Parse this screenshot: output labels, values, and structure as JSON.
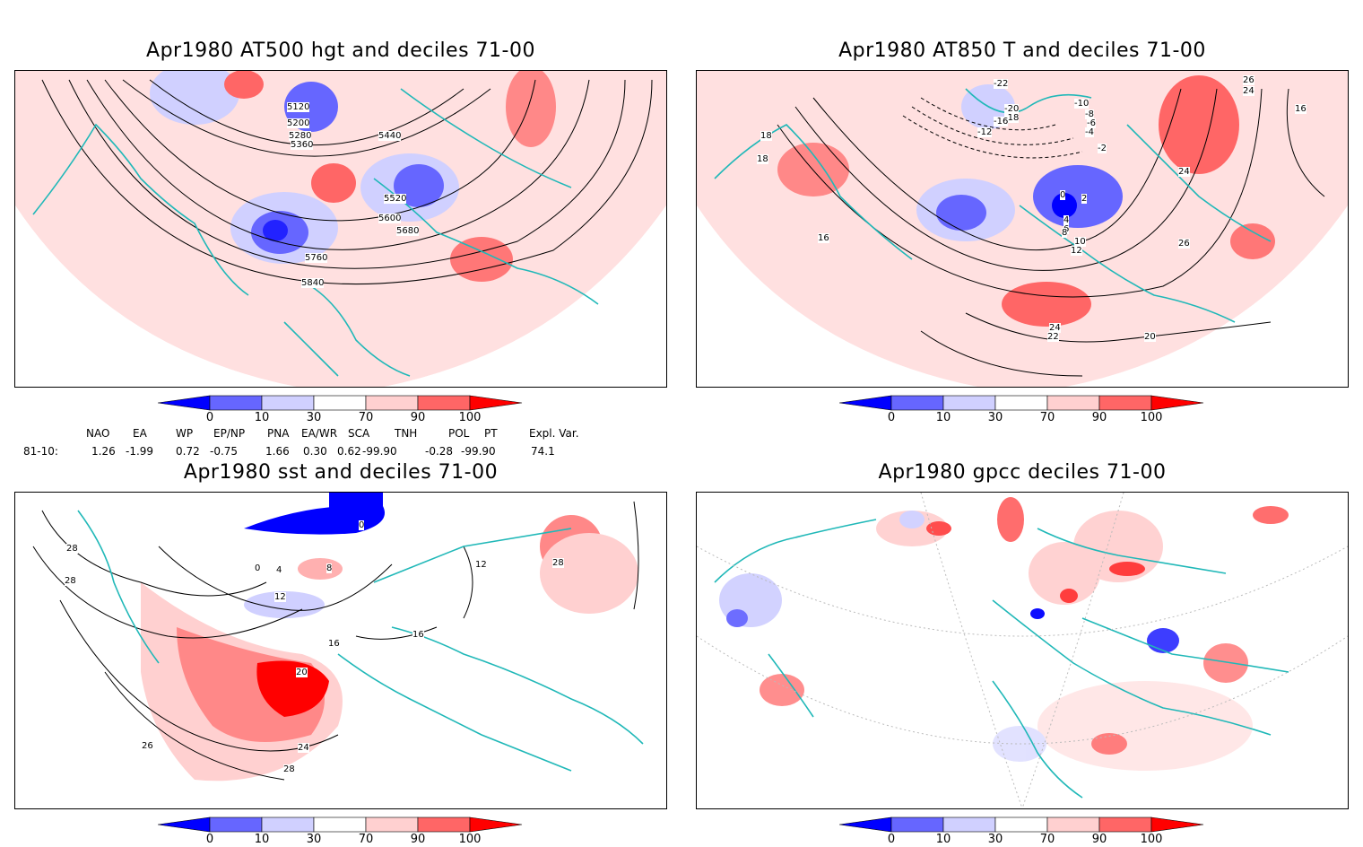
{
  "panels": [
    {
      "title": "Apr1980 AT500 hgt and deciles 71-00",
      "contour_labels": [
        "5120",
        "5200",
        "5280",
        "5360",
        "5440",
        "5520",
        "5600",
        "5680",
        "5760",
        "5840"
      ]
    },
    {
      "title": "Apr1980 AT850 T and deciles 71-00",
      "contour_labels": [
        "-22",
        "-20",
        "-18",
        "-16",
        "-12",
        "-10",
        "-8",
        "-6",
        "-4",
        "-2",
        "0",
        "2",
        "4",
        "6",
        "8",
        "10",
        "12",
        "16",
        "18",
        "18",
        "20",
        "22",
        "24",
        "24",
        "24",
        "26",
        "26",
        "16"
      ]
    },
    {
      "title": "Apr1980 sst and deciles 71-00",
      "contour_labels": [
        "28",
        "28",
        "0",
        "0",
        "4",
        "8",
        "12",
        "16",
        "16",
        "20",
        "24",
        "26",
        "28",
        "12",
        "28"
      ]
    },
    {
      "title": "Apr1980 gpcc deciles 71-00",
      "contour_labels": []
    }
  ],
  "colorbar": {
    "ticks": [
      "0",
      "10",
      "30",
      "70",
      "90",
      "100"
    ],
    "colors": [
      "#0000ff",
      "#6666ff",
      "#d0d0ff",
      "#ffffff",
      "#ffd0d0",
      "#ff6666",
      "#ff0000"
    ]
  },
  "indices": {
    "headers": [
      "NAO",
      "EA",
      "WP",
      "EP/NP",
      "PNA",
      "EA/WR",
      "SCA",
      "TNH",
      "POL",
      "PT",
      "Expl. Var."
    ],
    "row_label": "81-10:",
    "values": [
      "1.26",
      "-1.99",
      "0.72",
      "-0.75",
      "1.66",
      "0.30",
      "0.62",
      "-99.90",
      "-0.28",
      "-99.90",
      "74.1"
    ]
  }
}
